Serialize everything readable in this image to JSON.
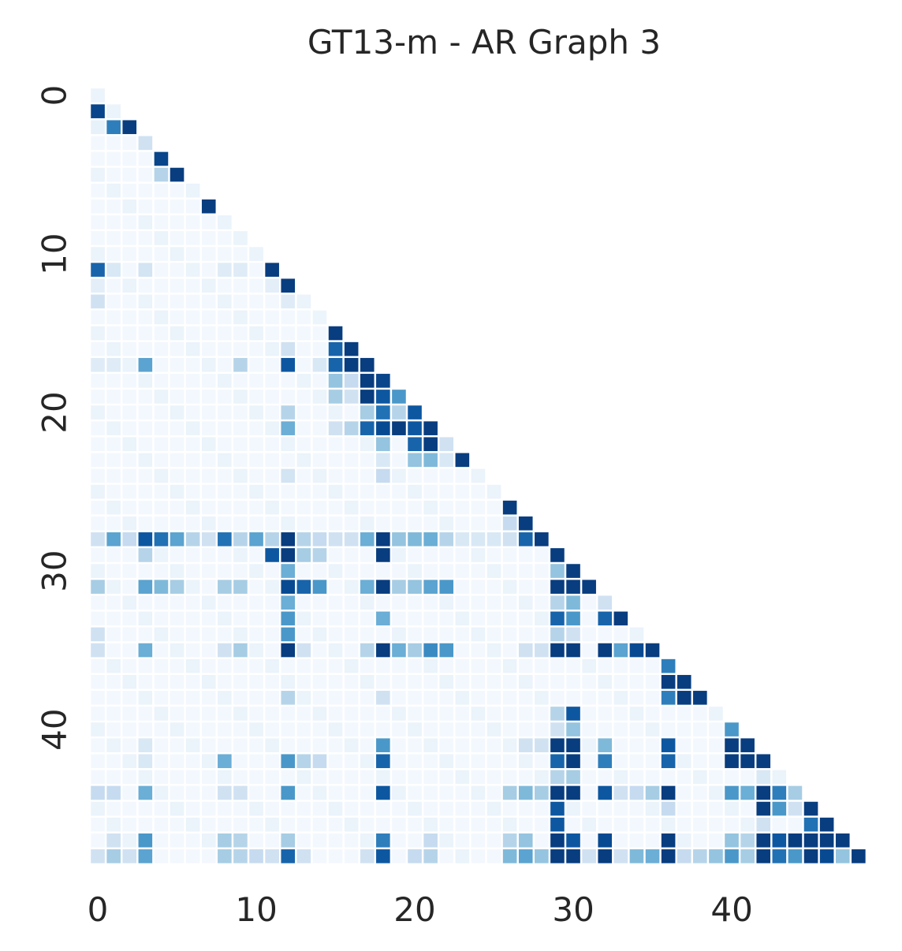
{
  "chart_data": {
    "type": "heatmap",
    "title": "GT13-m - AR Graph 3",
    "xlabel": "",
    "ylabel": "",
    "size": 49,
    "mask": "lower-triangle",
    "colormap": "Blues",
    "value_range": [
      0,
      1
    ],
    "x_ticks": [
      0,
      10,
      20,
      30,
      40
    ],
    "y_ticks": [
      0,
      10,
      20,
      30,
      40
    ],
    "grid": false,
    "colorbar": false,
    "cells": [
      [
        1,
        0,
        0.92
      ],
      [
        2,
        0,
        0.08
      ],
      [
        2,
        1,
        0.7
      ],
      [
        2,
        2,
        0.95
      ],
      [
        3,
        3,
        0.2
      ],
      [
        4,
        4,
        0.92
      ],
      [
        5,
        4,
        0.3
      ],
      [
        5,
        5,
        0.95
      ],
      [
        7,
        7,
        0.95
      ],
      [
        11,
        0,
        0.8
      ],
      [
        11,
        1,
        0.15
      ],
      [
        11,
        3,
        0.18
      ],
      [
        11,
        8,
        0.12
      ],
      [
        11,
        9,
        0.12
      ],
      [
        11,
        11,
        0.95
      ],
      [
        12,
        0,
        0.1
      ],
      [
        12,
        11,
        0.1
      ],
      [
        12,
        12,
        0.95
      ],
      [
        13,
        0,
        0.2
      ],
      [
        13,
        12,
        0.12
      ],
      [
        14,
        14,
        0.05
      ],
      [
        15,
        15,
        0.95
      ],
      [
        16,
        12,
        0.2
      ],
      [
        16,
        15,
        0.8
      ],
      [
        16,
        16,
        0.95
      ],
      [
        17,
        0,
        0.12
      ],
      [
        17,
        1,
        0.12
      ],
      [
        17,
        3,
        0.55
      ],
      [
        17,
        9,
        0.3
      ],
      [
        17,
        12,
        0.85
      ],
      [
        17,
        14,
        0.15
      ],
      [
        17,
        15,
        0.8
      ],
      [
        17,
        16,
        0.95
      ],
      [
        17,
        17,
        0.95
      ],
      [
        18,
        15,
        0.4
      ],
      [
        18,
        16,
        0.25
      ],
      [
        18,
        17,
        0.95
      ],
      [
        18,
        18,
        0.92
      ],
      [
        19,
        15,
        0.35
      ],
      [
        19,
        16,
        0.2
      ],
      [
        19,
        17,
        0.95
      ],
      [
        19,
        18,
        0.85
      ],
      [
        19,
        19,
        0.6
      ],
      [
        20,
        12,
        0.3
      ],
      [
        20,
        17,
        0.35
      ],
      [
        20,
        18,
        0.75
      ],
      [
        20,
        19,
        0.3
      ],
      [
        20,
        20,
        0.85
      ],
      [
        21,
        12,
        0.5
      ],
      [
        21,
        15,
        0.2
      ],
      [
        21,
        16,
        0.3
      ],
      [
        21,
        17,
        0.8
      ],
      [
        21,
        18,
        0.9
      ],
      [
        21,
        19,
        0.95
      ],
      [
        21,
        20,
        0.85
      ],
      [
        21,
        21,
        0.95
      ],
      [
        22,
        18,
        0.4
      ],
      [
        22,
        20,
        0.8
      ],
      [
        22,
        21,
        0.95
      ],
      [
        22,
        22,
        0.2
      ],
      [
        23,
        18,
        0.15
      ],
      [
        23,
        20,
        0.4
      ],
      [
        23,
        21,
        0.45
      ],
      [
        23,
        22,
        0.15
      ],
      [
        23,
        23,
        0.95
      ],
      [
        24,
        12,
        0.18
      ],
      [
        24,
        18,
        0.25
      ],
      [
        26,
        26,
        0.95
      ],
      [
        27,
        26,
        0.25
      ],
      [
        27,
        27,
        0.95
      ],
      [
        28,
        0,
        0.2
      ],
      [
        28,
        1,
        0.55
      ],
      [
        28,
        2,
        0.25
      ],
      [
        28,
        3,
        0.85
      ],
      [
        28,
        4,
        0.75
      ],
      [
        28,
        5,
        0.55
      ],
      [
        28,
        6,
        0.3
      ],
      [
        28,
        7,
        0.2
      ],
      [
        28,
        8,
        0.75
      ],
      [
        28,
        9,
        0.3
      ],
      [
        28,
        10,
        0.55
      ],
      [
        28,
        11,
        0.3
      ],
      [
        28,
        12,
        0.95
      ],
      [
        28,
        13,
        0.3
      ],
      [
        28,
        14,
        0.25
      ],
      [
        28,
        15,
        0.2
      ],
      [
        28,
        16,
        0.2
      ],
      [
        28,
        17,
        0.5
      ],
      [
        28,
        18,
        0.95
      ],
      [
        28,
        19,
        0.4
      ],
      [
        28,
        20,
        0.45
      ],
      [
        28,
        21,
        0.5
      ],
      [
        28,
        22,
        0.3
      ],
      [
        28,
        23,
        0.15
      ],
      [
        28,
        24,
        0.15
      ],
      [
        28,
        25,
        0.15
      ],
      [
        28,
        26,
        0.2
      ],
      [
        28,
        27,
        0.8
      ],
      [
        28,
        28,
        0.95
      ],
      [
        29,
        3,
        0.3
      ],
      [
        29,
        11,
        0.85
      ],
      [
        29,
        12,
        0.95
      ],
      [
        29,
        13,
        0.35
      ],
      [
        29,
        14,
        0.3
      ],
      [
        29,
        18,
        0.95
      ],
      [
        29,
        29,
        0.95
      ],
      [
        30,
        12,
        0.5
      ],
      [
        30,
        29,
        0.4
      ],
      [
        30,
        30,
        0.95
      ],
      [
        31,
        0,
        0.35
      ],
      [
        31,
        3,
        0.55
      ],
      [
        31,
        4,
        0.45
      ],
      [
        31,
        5,
        0.35
      ],
      [
        31,
        8,
        0.35
      ],
      [
        31,
        9,
        0.35
      ],
      [
        31,
        12,
        0.9
      ],
      [
        31,
        13,
        0.8
      ],
      [
        31,
        14,
        0.6
      ],
      [
        31,
        17,
        0.5
      ],
      [
        31,
        18,
        0.95
      ],
      [
        31,
        19,
        0.35
      ],
      [
        31,
        20,
        0.4
      ],
      [
        31,
        21,
        0.55
      ],
      [
        31,
        22,
        0.6
      ],
      [
        31,
        29,
        0.95
      ],
      [
        31,
        30,
        0.95
      ],
      [
        31,
        31,
        0.95
      ],
      [
        32,
        12,
        0.5
      ],
      [
        32,
        29,
        0.3
      ],
      [
        32,
        30,
        0.45
      ],
      [
        32,
        32,
        0.2
      ],
      [
        33,
        12,
        0.6
      ],
      [
        33,
        18,
        0.5
      ],
      [
        33,
        29,
        0.8
      ],
      [
        33,
        30,
        0.6
      ],
      [
        33,
        32,
        0.8
      ],
      [
        33,
        33,
        0.95
      ],
      [
        34,
        0,
        0.2
      ],
      [
        34,
        12,
        0.6
      ],
      [
        34,
        29,
        0.3
      ],
      [
        34,
        30,
        0.2
      ],
      [
        35,
        0,
        0.2
      ],
      [
        35,
        3,
        0.5
      ],
      [
        35,
        8,
        0.2
      ],
      [
        35,
        9,
        0.35
      ],
      [
        35,
        12,
        0.95
      ],
      [
        35,
        13,
        0.2
      ],
      [
        35,
        17,
        0.3
      ],
      [
        35,
        18,
        0.95
      ],
      [
        35,
        19,
        0.5
      ],
      [
        35,
        20,
        0.35
      ],
      [
        35,
        21,
        0.65
      ],
      [
        35,
        22,
        0.6
      ],
      [
        35,
        27,
        0.2
      ],
      [
        35,
        28,
        0.2
      ],
      [
        35,
        29,
        0.95
      ],
      [
        35,
        30,
        0.95
      ],
      [
        35,
        32,
        0.95
      ],
      [
        35,
        33,
        0.55
      ],
      [
        35,
        34,
        0.9
      ],
      [
        35,
        35,
        0.95
      ],
      [
        36,
        36,
        0.7
      ],
      [
        37,
        36,
        0.95
      ],
      [
        37,
        37,
        0.95
      ],
      [
        38,
        12,
        0.3
      ],
      [
        38,
        18,
        0.2
      ],
      [
        38,
        36,
        0.7
      ],
      [
        38,
        37,
        0.95
      ],
      [
        38,
        38,
        0.95
      ],
      [
        39,
        29,
        0.3
      ],
      [
        39,
        30,
        0.85
      ],
      [
        40,
        29,
        0.2
      ],
      [
        40,
        30,
        0.4
      ],
      [
        40,
        40,
        0.6
      ],
      [
        41,
        3,
        0.15
      ],
      [
        41,
        18,
        0.6
      ],
      [
        41,
        27,
        0.2
      ],
      [
        41,
        28,
        0.2
      ],
      [
        41,
        29,
        0.95
      ],
      [
        41,
        30,
        0.95
      ],
      [
        41,
        32,
        0.45
      ],
      [
        41,
        36,
        0.85
      ],
      [
        41,
        40,
        0.95
      ],
      [
        41,
        41,
        0.95
      ],
      [
        42,
        3,
        0.15
      ],
      [
        42,
        8,
        0.5
      ],
      [
        42,
        12,
        0.6
      ],
      [
        42,
        13,
        0.3
      ],
      [
        42,
        14,
        0.25
      ],
      [
        42,
        18,
        0.8
      ],
      [
        42,
        29,
        0.8
      ],
      [
        42,
        30,
        0.95
      ],
      [
        42,
        32,
        0.7
      ],
      [
        42,
        36,
        0.8
      ],
      [
        42,
        40,
        0.95
      ],
      [
        42,
        41,
        0.95
      ],
      [
        42,
        42,
        0.95
      ],
      [
        43,
        29,
        0.3
      ],
      [
        43,
        30,
        0.35
      ],
      [
        43,
        42,
        0.15
      ],
      [
        44,
        0,
        0.25
      ],
      [
        44,
        1,
        0.25
      ],
      [
        44,
        3,
        0.5
      ],
      [
        44,
        8,
        0.2
      ],
      [
        44,
        9,
        0.2
      ],
      [
        44,
        12,
        0.6
      ],
      [
        44,
        18,
        0.85
      ],
      [
        44,
        26,
        0.35
      ],
      [
        44,
        27,
        0.45
      ],
      [
        44,
        28,
        0.35
      ],
      [
        44,
        29,
        0.95
      ],
      [
        44,
        30,
        0.95
      ],
      [
        44,
        32,
        0.85
      ],
      [
        44,
        33,
        0.2
      ],
      [
        44,
        34,
        0.25
      ],
      [
        44,
        35,
        0.35
      ],
      [
        44,
        36,
        0.95
      ],
      [
        44,
        40,
        0.6
      ],
      [
        44,
        41,
        0.5
      ],
      [
        44,
        42,
        0.95
      ],
      [
        44,
        43,
        0.7
      ],
      [
        44,
        44,
        0.35
      ],
      [
        45,
        29,
        0.85
      ],
      [
        45,
        36,
        0.25
      ],
      [
        45,
        42,
        0.95
      ],
      [
        45,
        43,
        0.6
      ],
      [
        45,
        44,
        0.2
      ],
      [
        45,
        45,
        0.95
      ],
      [
        46,
        29,
        0.85
      ],
      [
        46,
        42,
        0.2
      ],
      [
        46,
        45,
        0.75
      ],
      [
        46,
        46,
        0.95
      ],
      [
        47,
        1,
        0.2
      ],
      [
        47,
        3,
        0.6
      ],
      [
        47,
        8,
        0.35
      ],
      [
        47,
        9,
        0.3
      ],
      [
        47,
        12,
        0.35
      ],
      [
        47,
        18,
        0.7
      ],
      [
        47,
        21,
        0.25
      ],
      [
        47,
        26,
        0.3
      ],
      [
        47,
        27,
        0.4
      ],
      [
        47,
        29,
        0.95
      ],
      [
        47,
        30,
        0.85
      ],
      [
        47,
        32,
        0.9
      ],
      [
        47,
        36,
        0.95
      ],
      [
        47,
        40,
        0.4
      ],
      [
        47,
        41,
        0.3
      ],
      [
        47,
        42,
        0.95
      ],
      [
        47,
        43,
        0.85
      ],
      [
        47,
        44,
        0.95
      ],
      [
        47,
        45,
        0.95
      ],
      [
        47,
        46,
        0.95
      ],
      [
        47,
        47,
        0.95
      ],
      [
        48,
        0,
        0.2
      ],
      [
        48,
        1,
        0.35
      ],
      [
        48,
        2,
        0.2
      ],
      [
        48,
        3,
        0.55
      ],
      [
        48,
        8,
        0.35
      ],
      [
        48,
        9,
        0.3
      ],
      [
        48,
        10,
        0.25
      ],
      [
        48,
        11,
        0.2
      ],
      [
        48,
        12,
        0.8
      ],
      [
        48,
        13,
        0.2
      ],
      [
        48,
        17,
        0.2
      ],
      [
        48,
        18,
        0.85
      ],
      [
        48,
        20,
        0.25
      ],
      [
        48,
        21,
        0.3
      ],
      [
        48,
        26,
        0.45
      ],
      [
        48,
        27,
        0.55
      ],
      [
        48,
        28,
        0.4
      ],
      [
        48,
        29,
        0.95
      ],
      [
        48,
        30,
        0.95
      ],
      [
        48,
        31,
        0.2
      ],
      [
        48,
        32,
        0.95
      ],
      [
        48,
        33,
        0.2
      ],
      [
        48,
        34,
        0.45
      ],
      [
        48,
        35,
        0.5
      ],
      [
        48,
        36,
        0.95
      ],
      [
        48,
        37,
        0.25
      ],
      [
        48,
        38,
        0.3
      ],
      [
        48,
        39,
        0.4
      ],
      [
        48,
        40,
        0.6
      ],
      [
        48,
        41,
        0.35
      ],
      [
        48,
        42,
        0.95
      ],
      [
        48,
        43,
        0.75
      ],
      [
        48,
        44,
        0.6
      ],
      [
        48,
        45,
        0.95
      ],
      [
        48,
        46,
        0.9
      ],
      [
        48,
        47,
        0.4
      ],
      [
        48,
        48,
        0.95
      ]
    ]
  }
}
